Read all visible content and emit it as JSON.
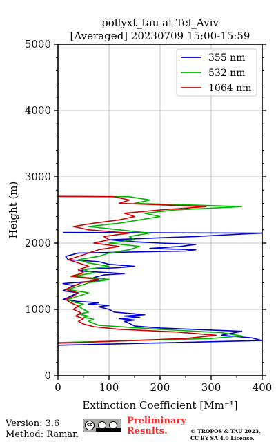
{
  "chart_data": {
    "type": "line",
    "title": "pollyxt_tau at Tel_Aviv",
    "subtitle": "[Averaged] 20230709 15:00-15:59",
    "xlabel": "Extinction Coefficient [Mm⁻¹]",
    "ylabel": "Height (m)",
    "xlim": [
      0,
      400
    ],
    "ylim": [
      0,
      5000
    ],
    "xticks": [
      0,
      100,
      200,
      300,
      400
    ],
    "yticks": [
      0,
      1000,
      2000,
      3000,
      4000,
      5000
    ],
    "grid": true,
    "legend_position": "top-right",
    "series": [
      {
        "name": "355 nm",
        "color": "#0000cc",
        "points": [
          [
            0,
            460
          ],
          [
            400,
            530
          ],
          [
            380,
            570
          ],
          [
            320,
            610
          ],
          [
            360,
            670
          ],
          [
            200,
            720
          ],
          [
            150,
            750
          ],
          [
            140,
            790
          ],
          [
            130,
            820
          ],
          [
            150,
            840
          ],
          [
            120,
            860
          ],
          [
            160,
            880
          ],
          [
            130,
            900
          ],
          [
            170,
            920
          ],
          [
            110,
            960
          ],
          [
            100,
            1000
          ],
          [
            80,
            1040
          ],
          [
            100,
            1060
          ],
          [
            60,
            1080
          ],
          [
            80,
            1100
          ],
          [
            40,
            1120
          ],
          [
            10,
            1150
          ],
          [
            20,
            1180
          ],
          [
            30,
            1220
          ],
          [
            40,
            1250
          ],
          [
            10,
            1280
          ],
          [
            20,
            1320
          ],
          [
            30,
            1360
          ],
          [
            10,
            1390
          ],
          [
            60,
            1420
          ],
          [
            100,
            1450
          ],
          [
            70,
            1480
          ],
          [
            90,
            1520
          ],
          [
            130,
            1540
          ],
          [
            40,
            1580
          ],
          [
            60,
            1610
          ],
          [
            120,
            1630
          ],
          [
            150,
            1650
          ],
          [
            100,
            1680
          ],
          [
            80,
            1720
          ],
          [
            20,
            1750
          ],
          [
            15,
            1800
          ],
          [
            40,
            1850
          ],
          [
            250,
            1880
          ],
          [
            270,
            1900
          ],
          [
            180,
            1920
          ],
          [
            240,
            1950
          ],
          [
            270,
            1980
          ],
          [
            200,
            2000
          ],
          [
            150,
            2020
          ],
          [
            100,
            2050
          ],
          [
            200,
            2080
          ],
          [
            270,
            2100
          ],
          [
            320,
            2120
          ],
          [
            400,
            2150
          ],
          [
            10,
            2160
          ]
        ]
      },
      {
        "name": "532 nm",
        "color": "#00b400",
        "points": [
          [
            0,
            500
          ],
          [
            300,
            560
          ],
          [
            360,
            600
          ],
          [
            320,
            650
          ],
          [
            200,
            700
          ],
          [
            140,
            730
          ],
          [
            80,
            760
          ],
          [
            70,
            790
          ],
          [
            60,
            820
          ],
          [
            70,
            850
          ],
          [
            50,
            880
          ],
          [
            60,
            900
          ],
          [
            40,
            930
          ],
          [
            60,
            960
          ],
          [
            50,
            1000
          ],
          [
            40,
            1050
          ],
          [
            50,
            1080
          ],
          [
            30,
            1110
          ],
          [
            20,
            1150
          ],
          [
            40,
            1200
          ],
          [
            60,
            1250
          ],
          [
            20,
            1300
          ],
          [
            40,
            1350
          ],
          [
            60,
            1400
          ],
          [
            100,
            1450
          ],
          [
            30,
            1500
          ],
          [
            70,
            1550
          ],
          [
            50,
            1600
          ],
          [
            100,
            1650
          ],
          [
            60,
            1700
          ],
          [
            40,
            1750
          ],
          [
            80,
            1800
          ],
          [
            100,
            1850
          ],
          [
            140,
            1900
          ],
          [
            160,
            1950
          ],
          [
            100,
            2000
          ],
          [
            150,
            2050
          ],
          [
            140,
            2100
          ],
          [
            180,
            2150
          ],
          [
            120,
            2200
          ],
          [
            60,
            2250
          ],
          [
            120,
            2300
          ],
          [
            160,
            2350
          ],
          [
            200,
            2400
          ],
          [
            170,
            2450
          ],
          [
            230,
            2500
          ],
          [
            360,
            2550
          ],
          [
            150,
            2600
          ],
          [
            180,
            2650
          ],
          [
            140,
            2700
          ],
          [
            0,
            2705
          ]
        ]
      },
      {
        "name": "1064 nm",
        "color": "#cc0000",
        "points": [
          [
            0,
            490
          ],
          [
            250,
            560
          ],
          [
            310,
            610
          ],
          [
            230,
            660
          ],
          [
            120,
            700
          ],
          [
            70,
            740
          ],
          [
            50,
            780
          ],
          [
            40,
            820
          ],
          [
            50,
            860
          ],
          [
            35,
            900
          ],
          [
            45,
            950
          ],
          [
            30,
            1000
          ],
          [
            40,
            1050
          ],
          [
            25,
            1100
          ],
          [
            15,
            1150
          ],
          [
            30,
            1200
          ],
          [
            40,
            1250
          ],
          [
            15,
            1300
          ],
          [
            30,
            1350
          ],
          [
            45,
            1400
          ],
          [
            80,
            1450
          ],
          [
            25,
            1500
          ],
          [
            50,
            1550
          ],
          [
            40,
            1600
          ],
          [
            60,
            1650
          ],
          [
            40,
            1700
          ],
          [
            20,
            1750
          ],
          [
            40,
            1800
          ],
          [
            60,
            1850
          ],
          [
            80,
            1900
          ],
          [
            120,
            1950
          ],
          [
            70,
            2000
          ],
          [
            100,
            2050
          ],
          [
            90,
            2100
          ],
          [
            140,
            2150
          ],
          [
            60,
            2200
          ],
          [
            30,
            2250
          ],
          [
            70,
            2300
          ],
          [
            120,
            2350
          ],
          [
            150,
            2400
          ],
          [
            130,
            2450
          ],
          [
            200,
            2500
          ],
          [
            290,
            2550
          ],
          [
            120,
            2600
          ],
          [
            140,
            2650
          ],
          [
            110,
            2700
          ],
          [
            0,
            2705
          ]
        ]
      }
    ]
  },
  "footer": {
    "version": "Version: 3.6",
    "method": "Method: Raman",
    "license_badge_text": "cc BY SA",
    "preliminary_line1": "Preliminary",
    "preliminary_line2": "Results.",
    "copyright_line1": "© TROPOS & TAU 2023.",
    "copyright_line2": "CC BY SA 4.0 License."
  }
}
